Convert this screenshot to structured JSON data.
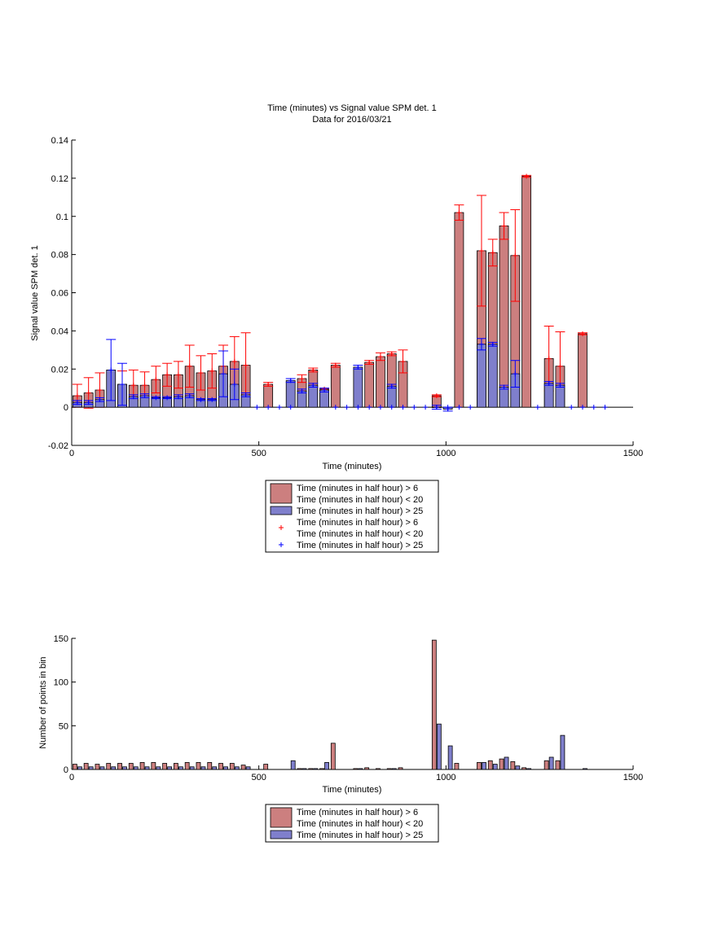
{
  "chart_data": [
    {
      "type": "bar",
      "title": "Time (minutes) vs Signal value SPM det. 1",
      "subtitle": "Data for 2016/03/21",
      "xlabel": "Time (minutes)",
      "ylabel": "Signal value SPM det. 1",
      "xlim": [
        0,
        1500
      ],
      "ylim": [
        -0.02,
        0.14
      ],
      "xticks": [
        "0",
        "500",
        "1000",
        "1500"
      ],
      "yticks": [
        "-0.02",
        "0",
        "0.02",
        "0.04",
        "0.06",
        "0.08",
        "0.1",
        "0.12",
        "0.14"
      ],
      "grid": false,
      "legend_placement": "below",
      "legend": [
        {
          "label": "Time (minutes in half hour) > 6",
          "label2": "Time (minutes in half hour) < 20",
          "kind": "bar",
          "color": "#cc7f7f"
        },
        {
          "label": "Time (minutes in half hour) > 25",
          "kind": "bar",
          "color": "#7f7fcc"
        },
        {
          "label": "Time (minutes in half hour) > 6",
          "label2": "Time (minutes in half hour) < 20",
          "kind": "marker",
          "color": "#ff0000"
        },
        {
          "label": "Time (minutes in half hour) > 25",
          "kind": "marker",
          "color": "#0000ff"
        }
      ],
      "series": [
        {
          "name": "Time (minutes in half hour) > 6 / < 20",
          "color": "#cc7f7f",
          "err_color": "#ff0000",
          "x": [
            15,
            45,
            75,
            135,
            165,
            195,
            225,
            255,
            285,
            315,
            345,
            375,
            405,
            435,
            465,
            525,
            615,
            645,
            675,
            705,
            795,
            825,
            855,
            885,
            975,
            1035,
            1095,
            1125,
            1155,
            1185,
            1215,
            1275,
            1305,
            1365
          ],
          "values": [
            0.006,
            0.0075,
            0.009,
            0.012,
            0.0115,
            0.0115,
            0.0145,
            0.017,
            0.017,
            0.0215,
            0.018,
            0.019,
            0.0215,
            0.024,
            0.022,
            0.012,
            0.015,
            0.0195,
            0.0095,
            0.022,
            0.0235,
            0.0265,
            0.028,
            0.024,
            0.006,
            0.102,
            0.082,
            0.081,
            0.095,
            0.0795,
            0.121,
            0.0255,
            0.0215,
            0.0385
          ],
          "err": [
            0.006,
            0.008,
            0.009,
            0.007,
            0.008,
            0.007,
            0.007,
            0.006,
            0.007,
            0.011,
            0.009,
            0.009,
            0.011,
            0.013,
            0.017,
            0.001,
            0.002,
            0.001,
            0.0005,
            0.001,
            0.001,
            0.002,
            0.001,
            0.006,
            0.0005,
            0.004,
            0.029,
            0.007,
            0.007,
            0.024,
            0.0005,
            0.017,
            0.018,
            0.0005
          ]
        },
        {
          "name": "Time (minutes in half hour) > 25",
          "color": "#7f7fcc",
          "err_color": "#0000ff",
          "x": [
            15,
            45,
            75,
            105,
            135,
            165,
            195,
            225,
            255,
            285,
            315,
            345,
            375,
            405,
            435,
            465,
            585,
            615,
            645,
            675,
            765,
            855,
            975,
            1005,
            1095,
            1125,
            1155,
            1185,
            1275,
            1305
          ],
          "values": [
            0.0025,
            0.0025,
            0.004,
            0.0195,
            0.012,
            0.0055,
            0.006,
            0.005,
            0.005,
            0.0055,
            0.006,
            0.004,
            0.004,
            0.0175,
            0.012,
            0.0065,
            0.014,
            0.0085,
            0.0115,
            0.009,
            0.021,
            0.011,
            0.0,
            -0.001,
            0.033,
            0.033,
            0.0105,
            0.0175,
            0.0125,
            0.0115
          ],
          "err": [
            0.001,
            0.001,
            0.001,
            0.016,
            0.011,
            0.001,
            0.001,
            0.0005,
            0.0005,
            0.001,
            0.001,
            0.0005,
            0.0005,
            0.012,
            0.008,
            0.001,
            0.001,
            0.001,
            0.001,
            0.001,
            0.001,
            0.001,
            0.001,
            0.001,
            0.003,
            0.001,
            0.001,
            0.007,
            0.001,
            0.001
          ]
        }
      ],
      "zero_markers_x": [
        495,
        525,
        555,
        585,
        705,
        735,
        765,
        795,
        825,
        855,
        885,
        915,
        945,
        975,
        1005,
        1035,
        1065,
        1245,
        1335,
        1365,
        1395,
        1425
      ]
    },
    {
      "type": "bar",
      "xlabel": "Time (minutes)",
      "ylabel": "Number of points in bin",
      "xlim": [
        0,
        1500
      ],
      "ylim": [
        0,
        150
      ],
      "xticks": [
        "0",
        "500",
        "1000",
        "1500"
      ],
      "yticks": [
        "0",
        "50",
        "100",
        "150"
      ],
      "grid": false,
      "legend_placement": "below",
      "legend": [
        {
          "label": "Time (minutes in half hour) > 6",
          "label2": "Time (minutes in half hour) < 20",
          "kind": "bar",
          "color": "#cc7f7f"
        },
        {
          "label": "Time (minutes in half hour) > 25",
          "kind": "bar",
          "color": "#7f7fcc"
        }
      ],
      "series": [
        {
          "name": "Time (minutes in half hour) > 6 / < 20",
          "color": "#cc7f7f",
          "x": [
            15,
            45,
            75,
            105,
            135,
            165,
            195,
            225,
            255,
            285,
            315,
            345,
            375,
            405,
            435,
            465,
            525,
            615,
            645,
            675,
            705,
            765,
            795,
            825,
            855,
            885,
            975,
            1035,
            1095,
            1125,
            1155,
            1185,
            1215,
            1275,
            1305
          ],
          "values": [
            6,
            7,
            6,
            7,
            7,
            7,
            8,
            8,
            7,
            7,
            8,
            8,
            8,
            7,
            7,
            5,
            6,
            1,
            1,
            1,
            30,
            1,
            2,
            1,
            1,
            2,
            148,
            7,
            8,
            10,
            12,
            9,
            2,
            10,
            10
          ]
        },
        {
          "name": "Time (minutes in half hour) > 25",
          "color": "#7f7fcc",
          "x": [
            15,
            45,
            75,
            105,
            135,
            165,
            195,
            225,
            255,
            285,
            315,
            345,
            375,
            405,
            435,
            465,
            585,
            615,
            645,
            675,
            765,
            855,
            975,
            1005,
            1095,
            1125,
            1155,
            1185,
            1215,
            1275,
            1305,
            1365
          ],
          "values": [
            3,
            3,
            3,
            3,
            3,
            3,
            3,
            3,
            3,
            3,
            3,
            3,
            3,
            3,
            3,
            3,
            10,
            1,
            1,
            8,
            1,
            1,
            52,
            27,
            8,
            6,
            14,
            4,
            1,
            14,
            39,
            1
          ]
        }
      ]
    }
  ]
}
